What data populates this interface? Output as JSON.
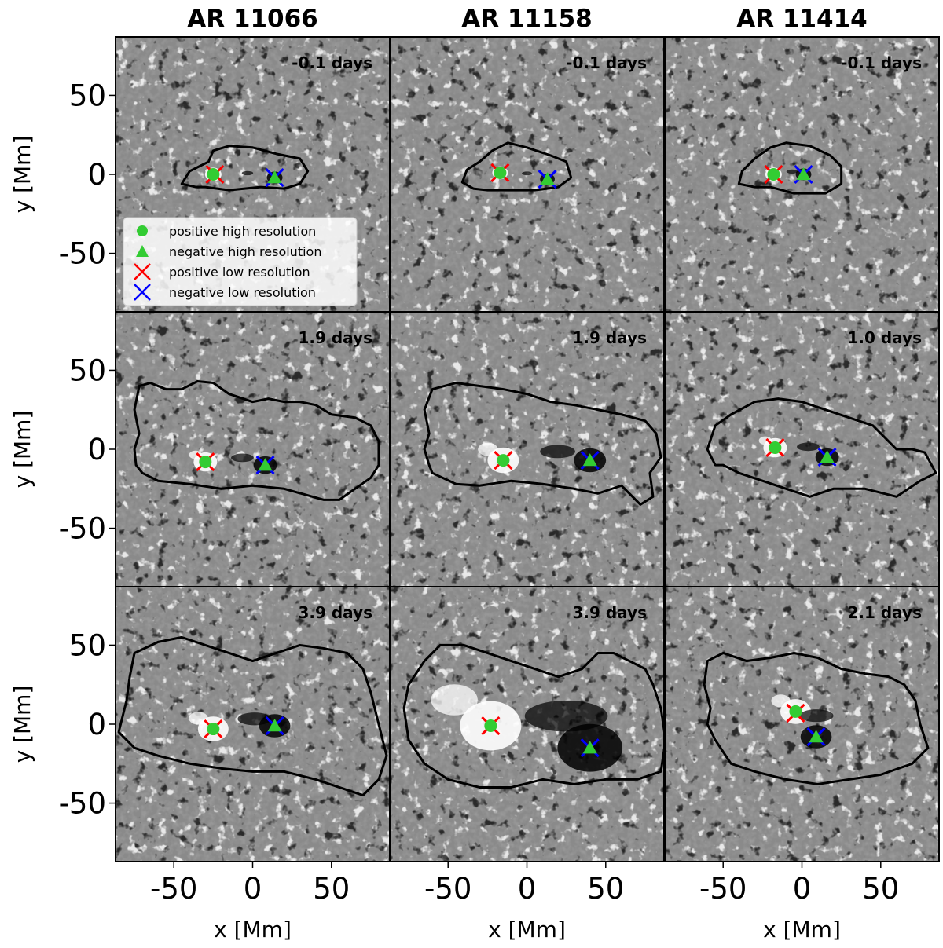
{
  "chart_data": {
    "type": "scatter",
    "description_grid": "3x3 panels of magnetograms with contour outlines",
    "x_label": "x [Mm]",
    "y_label": "y [Mm]",
    "xlim": [
      -87,
      87
    ],
    "ylim": [
      -87,
      87
    ],
    "x_ticks": [
      -50,
      0,
      50
    ],
    "y_ticks": [
      50,
      0,
      -50
    ],
    "x_tick_labels": [
      "-50",
      "0",
      "50"
    ],
    "y_tick_labels": [
      "50",
      "0",
      "-50"
    ],
    "columns": [
      "AR 11066",
      "AR 11158",
      "AR 11414"
    ],
    "legend": [
      {
        "label": "positive high resolution",
        "marker": "circle",
        "color": "#33cc33"
      },
      {
        "label": "negative high resolution",
        "marker": "triangle",
        "color": "#33cc33"
      },
      {
        "label": "positive low resolution",
        "marker": "x",
        "color": "#ff0000"
      },
      {
        "label": "negative low resolution",
        "marker": "x",
        "color": "#0000ff"
      }
    ],
    "panels": [
      {
        "column": 0,
        "row": 0,
        "time": "-0.1 days",
        "pos_hr": [
          -25,
          0
        ],
        "neg_hr": [
          14,
          -2
        ],
        "pos_lr": [
          -24,
          0
        ],
        "neg_lr": [
          14,
          -2
        ],
        "contour": [
          [
            -30,
            -8
          ],
          [
            -15,
            -10
          ],
          [
            5,
            -8
          ],
          [
            20,
            -9
          ],
          [
            30,
            -6
          ],
          [
            35,
            2
          ],
          [
            30,
            10
          ],
          [
            15,
            13
          ],
          [
            0,
            17
          ],
          [
            -15,
            18
          ],
          [
            -25,
            15
          ],
          [
            -28,
            8
          ],
          [
            -40,
            2
          ],
          [
            -45,
            -6
          ],
          [
            -36,
            -8
          ]
        ]
      },
      {
        "column": 1,
        "row": 0,
        "time": "-0.1 days",
        "pos_hr": [
          -17,
          1
        ],
        "neg_hr": [
          13,
          -3
        ],
        "pos_lr": [
          -17,
          1
        ],
        "neg_lr": [
          13,
          -3
        ],
        "contour": [
          [
            -25,
            -10
          ],
          [
            -10,
            -10
          ],
          [
            5,
            -10
          ],
          [
            20,
            -8
          ],
          [
            28,
            -2
          ],
          [
            25,
            8
          ],
          [
            15,
            12
          ],
          [
            0,
            17
          ],
          [
            -12,
            20
          ],
          [
            -22,
            15
          ],
          [
            -30,
            8
          ],
          [
            -38,
            3
          ],
          [
            -41,
            -5
          ],
          [
            -34,
            -9
          ]
        ]
      },
      {
        "column": 2,
        "row": 0,
        "time": "-0.1 days",
        "pos_hr": [
          -18,
          0
        ],
        "neg_hr": [
          1,
          0
        ],
        "pos_lr": [
          -18,
          0
        ],
        "neg_lr": [
          1,
          0
        ],
        "contour": [
          [
            -20,
            -8
          ],
          [
            -5,
            -12
          ],
          [
            15,
            -12
          ],
          [
            25,
            -6
          ],
          [
            25,
            5
          ],
          [
            18,
            12
          ],
          [
            5,
            18
          ],
          [
            -10,
            20
          ],
          [
            -20,
            17
          ],
          [
            -30,
            10
          ],
          [
            -38,
            2
          ],
          [
            -40,
            -6
          ],
          [
            -30,
            -8
          ]
        ]
      },
      {
        "column": 0,
        "row": 1,
        "time": "1.9 days",
        "pos_hr": [
          -30,
          -8
        ],
        "neg_hr": [
          8,
          -10
        ],
        "pos_lr": [
          -30,
          -8
        ],
        "neg_lr": [
          8,
          -10
        ],
        "contour": [
          [
            -70,
            -15
          ],
          [
            -60,
            -20
          ],
          [
            -40,
            -22
          ],
          [
            -20,
            -25
          ],
          [
            0,
            -23
          ],
          [
            20,
            -25
          ],
          [
            45,
            -32
          ],
          [
            55,
            -32
          ],
          [
            65,
            -25
          ],
          [
            75,
            -18
          ],
          [
            80,
            -10
          ],
          [
            80,
            5
          ],
          [
            75,
            15
          ],
          [
            65,
            20
          ],
          [
            50,
            22
          ],
          [
            40,
            28
          ],
          [
            30,
            30
          ],
          [
            20,
            30
          ],
          [
            10,
            32
          ],
          [
            0,
            30
          ],
          [
            -15,
            35
          ],
          [
            -25,
            42
          ],
          [
            -35,
            43
          ],
          [
            -45,
            38
          ],
          [
            -55,
            38
          ],
          [
            -65,
            42
          ],
          [
            -72,
            40
          ],
          [
            -75,
            25
          ],
          [
            -72,
            10
          ],
          [
            -75,
            0
          ],
          [
            -74,
            -10
          ]
        ]
      },
      {
        "column": 1,
        "row": 1,
        "time": "1.9 days",
        "pos_hr": [
          -15,
          -7
        ],
        "neg_hr": [
          40,
          -7
        ],
        "pos_lr": [
          -15,
          -7
        ],
        "neg_lr": [
          40,
          -7
        ],
        "contour": [
          [
            -60,
            -15
          ],
          [
            -45,
            -22
          ],
          [
            -30,
            -23
          ],
          [
            -10,
            -20
          ],
          [
            10,
            -22
          ],
          [
            30,
            -25
          ],
          [
            45,
            -28
          ],
          [
            60,
            -23
          ],
          [
            72,
            -35
          ],
          [
            80,
            -30
          ],
          [
            78,
            -15
          ],
          [
            85,
            -5
          ],
          [
            82,
            10
          ],
          [
            75,
            18
          ],
          [
            60,
            22
          ],
          [
            45,
            25
          ],
          [
            30,
            28
          ],
          [
            15,
            30
          ],
          [
            0,
            35
          ],
          [
            -15,
            38
          ],
          [
            -30,
            40
          ],
          [
            -45,
            42
          ],
          [
            -60,
            38
          ],
          [
            -65,
            25
          ],
          [
            -62,
            10
          ],
          [
            -65,
            0
          ],
          [
            -62,
            -10
          ]
        ]
      },
      {
        "column": 2,
        "row": 1,
        "time": "1.0 days",
        "pos_hr": [
          -17,
          1
        ],
        "neg_hr": [
          16,
          -5
        ],
        "pos_lr": [
          -17,
          1
        ],
        "neg_lr": [
          16,
          -5
        ],
        "contour": [
          [
            -50,
            -10
          ],
          [
            -40,
            -15
          ],
          [
            -25,
            -20
          ],
          [
            -10,
            -25
          ],
          [
            5,
            -30
          ],
          [
            20,
            -25
          ],
          [
            40,
            -25
          ],
          [
            60,
            -30
          ],
          [
            75,
            -20
          ],
          [
            85,
            -15
          ],
          [
            78,
            -2
          ],
          [
            70,
            0
          ],
          [
            60,
            0
          ],
          [
            55,
            5
          ],
          [
            45,
            15
          ],
          [
            30,
            20
          ],
          [
            15,
            25
          ],
          [
            0,
            30
          ],
          [
            -15,
            32
          ],
          [
            -30,
            30
          ],
          [
            -45,
            22
          ],
          [
            -55,
            15
          ],
          [
            -60,
            0
          ],
          [
            -55,
            -10
          ]
        ]
      },
      {
        "column": 0,
        "row": 2,
        "time": "3.9 days",
        "pos_hr": [
          -25,
          -3
        ],
        "neg_hr": [
          14,
          -1
        ],
        "pos_lr": [
          -25,
          -3
        ],
        "neg_lr": [
          14,
          -1
        ],
        "contour": [
          [
            -85,
            -5
          ],
          [
            -75,
            -15
          ],
          [
            -60,
            -20
          ],
          [
            -40,
            -25
          ],
          [
            -20,
            -28
          ],
          [
            0,
            -30
          ],
          [
            20,
            -30
          ],
          [
            40,
            -35
          ],
          [
            55,
            -40
          ],
          [
            70,
            -45
          ],
          [
            80,
            -35
          ],
          [
            85,
            -20
          ],
          [
            80,
            0
          ],
          [
            75,
            20
          ],
          [
            70,
            35
          ],
          [
            60,
            45
          ],
          [
            45,
            48
          ],
          [
            30,
            50
          ],
          [
            15,
            45
          ],
          [
            0,
            40
          ],
          [
            -15,
            45
          ],
          [
            -30,
            50
          ],
          [
            -45,
            55
          ],
          [
            -60,
            52
          ],
          [
            -75,
            45
          ],
          [
            -78,
            30
          ],
          [
            -80,
            15
          ]
        ]
      },
      {
        "column": 1,
        "row": 2,
        "time": "3.9 days",
        "pos_hr": [
          -23,
          -1
        ],
        "neg_hr": [
          40,
          -15
        ],
        "pos_lr": [
          -23,
          -1
        ],
        "neg_lr": [
          40,
          -15
        ],
        "contour": [
          [
            -75,
            -10
          ],
          [
            -65,
            -25
          ],
          [
            -50,
            -35
          ],
          [
            -30,
            -40
          ],
          [
            -10,
            -40
          ],
          [
            10,
            -35
          ],
          [
            30,
            -38
          ],
          [
            50,
            -35
          ],
          [
            70,
            -35
          ],
          [
            85,
            -30
          ],
          [
            88,
            -10
          ],
          [
            85,
            10
          ],
          [
            80,
            25
          ],
          [
            75,
            35
          ],
          [
            65,
            40
          ],
          [
            55,
            45
          ],
          [
            45,
            45
          ],
          [
            35,
            35
          ],
          [
            20,
            30
          ],
          [
            5,
            35
          ],
          [
            -10,
            40
          ],
          [
            -25,
            45
          ],
          [
            -40,
            50
          ],
          [
            -55,
            50
          ],
          [
            -65,
            40
          ],
          [
            -75,
            25
          ],
          [
            -78,
            10
          ]
        ]
      },
      {
        "column": 2,
        "row": 2,
        "time": "2.1 days",
        "pos_hr": [
          -4,
          8
        ],
        "neg_hr": [
          9,
          -8
        ],
        "pos_lr": [
          -4,
          7
        ],
        "neg_lr": [
          9,
          -8
        ],
        "contour": [
          [
            -55,
            -10
          ],
          [
            -45,
            -25
          ],
          [
            -30,
            -30
          ],
          [
            -10,
            -35
          ],
          [
            10,
            -38
          ],
          [
            30,
            -35
          ],
          [
            50,
            -32
          ],
          [
            70,
            -25
          ],
          [
            80,
            -15
          ],
          [
            75,
            0
          ],
          [
            72,
            15
          ],
          [
            65,
            25
          ],
          [
            55,
            30
          ],
          [
            40,
            32
          ],
          [
            25,
            35
          ],
          [
            10,
            42
          ],
          [
            -5,
            45
          ],
          [
            -20,
            42
          ],
          [
            -35,
            40
          ],
          [
            -50,
            45
          ],
          [
            -60,
            40
          ],
          [
            -62,
            25
          ],
          [
            -58,
            10
          ],
          [
            -60,
            0
          ]
        ]
      }
    ]
  }
}
